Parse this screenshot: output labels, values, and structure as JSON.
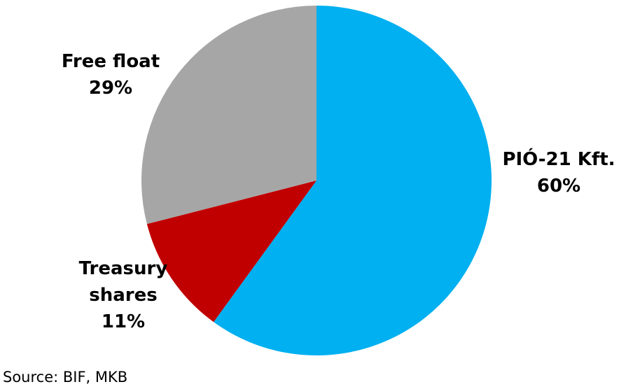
{
  "chart_data": {
    "type": "pie",
    "slices": [
      {
        "label_lines": [
          "PIÓ-21 Kft.",
          "60%"
        ],
        "value": 60,
        "color": "#00B0F0"
      },
      {
        "label_lines": [
          "Treasury",
          "shares",
          "11%"
        ],
        "value": 11,
        "color": "#C00000"
      },
      {
        "label_lines": [
          "Free float",
          "29%"
        ],
        "value": 29,
        "color": "#A6A6A6"
      }
    ],
    "start_angle": "12 o'clock",
    "direction": "clockwise"
  },
  "source": "Source: BIF, MKB"
}
